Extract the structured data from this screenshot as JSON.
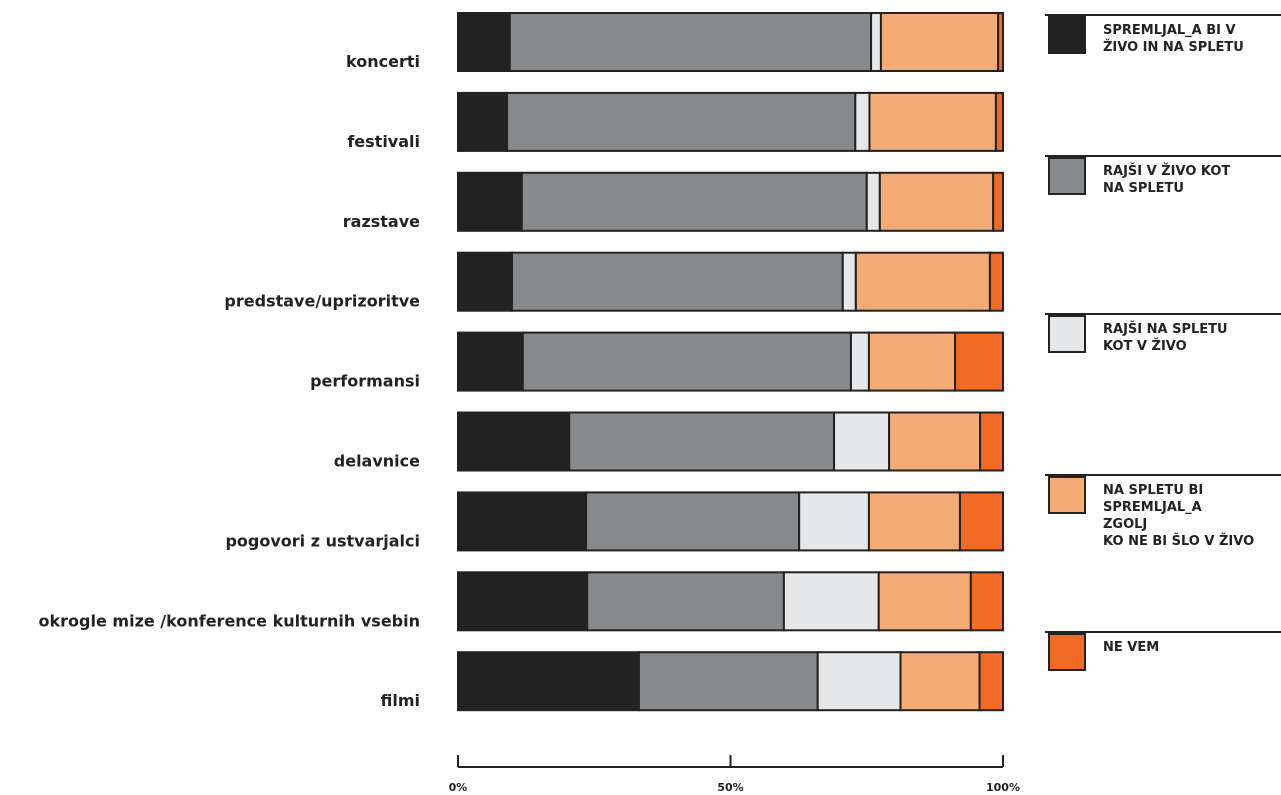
{
  "chart_data": {
    "type": "stacked-bar-horizontal",
    "categories": [
      "koncerti",
      "festivali",
      "razstave",
      "predstave/uprizoritve",
      "performansi",
      "delavnice",
      "pogovori z ustvarjalci",
      "okrogle mize /konference kulturnih vsebin",
      "filmi"
    ],
    "series": [
      {
        "name": "SPREMLJAL_A BI V\nŽIVO IN NA SPLETU",
        "color": "#222222",
        "values": [
          9.5,
          9.0,
          11.7,
          9.9,
          11.9,
          20.4,
          23.5,
          23.7,
          33.2
        ]
      },
      {
        "name": "RAJŠI V ŽIVO KOT\nNA SPLETU",
        "color": "#868a8c",
        "values": [
          66.3,
          63.9,
          63.3,
          60.7,
          60.2,
          48.6,
          39.1,
          36.1,
          32.8
        ]
      },
      {
        "name": "RAJŠI NA SPLETU\nKOT V ŽIVO",
        "color": "#e6e7e8",
        "values": [
          1.8,
          2.6,
          2.4,
          2.4,
          3.3,
          10.1,
          12.8,
          17.4,
          15.2
        ]
      },
      {
        "name": "NA SPLETU BI\nSPREMLJAL_A\nZGOLJ\nKO NE BI ŠLO V ŽIVO",
        "color": "#f5ab74",
        "values": [
          21.5,
          23.2,
          20.8,
          24.6,
          15.8,
          16.7,
          16.7,
          16.9,
          14.5
        ]
      },
      {
        "name": "NE VEM",
        "color": "#f26b25",
        "values": [
          0.9,
          1.3,
          1.8,
          2.4,
          8.8,
          4.2,
          7.9,
          5.9,
          4.3
        ]
      }
    ],
    "xlim": [
      0,
      100
    ],
    "xticks": [
      {
        "value": 0,
        "label": "0%"
      },
      {
        "value": 50,
        "label": "50%"
      },
      {
        "value": 100,
        "label": "100%"
      }
    ]
  }
}
